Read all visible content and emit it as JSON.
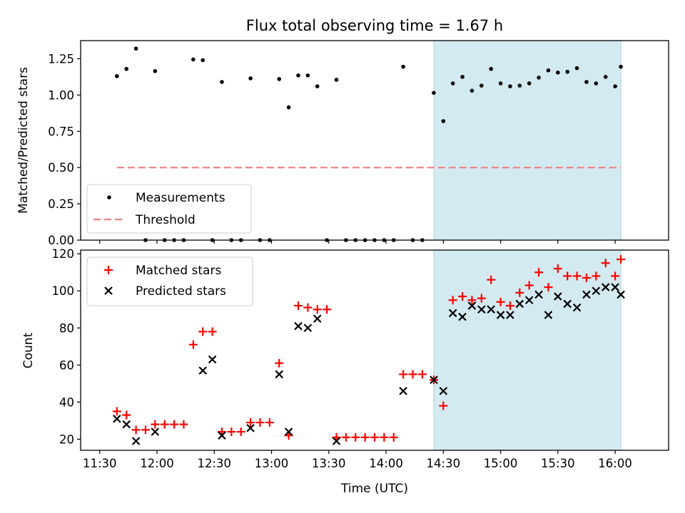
{
  "title": "Flux total observing time = 1.67 h",
  "colors": {
    "shade": "#d3eaf0",
    "shade_edge": "#a9d6e2",
    "threshold": "#f08080",
    "matched": "#ff0000",
    "predicted": "#000000",
    "measurement": "#000000"
  },
  "chart_data": [
    {
      "type": "scatter",
      "ylabel": "Matched/Predicted stars",
      "ylim": [
        0,
        1.375
      ],
      "yticks": [
        0.0,
        0.25,
        0.5,
        0.75,
        1.0,
        1.25
      ],
      "ytick_labels": [
        "0.00",
        "0.25",
        "0.50",
        "0.75",
        "1.00",
        "1.25"
      ],
      "xlim": [
        "11:20",
        "16:28"
      ],
      "shaded_span": [
        "14:25",
        "16:03"
      ],
      "legend_placement": "lower-left",
      "legend": [
        "Measurements",
        "Threshold"
      ],
      "threshold": {
        "name": "Threshold",
        "y": 0.5,
        "x_range": [
          "11:39",
          "16:03"
        ]
      },
      "series": [
        {
          "name": "Measurements",
          "marker": "dot",
          "x": [
            "11:39",
            "11:44",
            "11:49",
            "11:54",
            "11:59",
            "12:04",
            "12:09",
            "12:14",
            "12:19",
            "12:24",
            "12:29",
            "12:34",
            "12:39",
            "12:44",
            "12:49",
            "12:54",
            "12:59",
            "13:04",
            "13:09",
            "13:14",
            "13:19",
            "13:24",
            "13:29",
            "13:34",
            "13:39",
            "13:44",
            "13:49",
            "13:54",
            "13:59",
            "14:04",
            "14:09",
            "14:14",
            "14:19",
            "14:25",
            "14:30",
            "14:35",
            "14:40",
            "14:45",
            "14:50",
            "14:55",
            "15:00",
            "15:05",
            "15:10",
            "15:15",
            "15:20",
            "15:25",
            "15:30",
            "15:35",
            "15:40",
            "15:45",
            "15:50",
            "15:55",
            "16:00",
            "16:03"
          ],
          "y": [
            1.13,
            1.18,
            1.32,
            0,
            1.165,
            0,
            0,
            0,
            1.245,
            1.24,
            0,
            1.09,
            0,
            0,
            1.115,
            0,
            0,
            1.11,
            0.915,
            1.135,
            1.135,
            1.06,
            0,
            1.105,
            0,
            0,
            0,
            0,
            0,
            0,
            1.195,
            0,
            0,
            1.015,
            0.82,
            1.08,
            1.125,
            1.03,
            1.065,
            1.18,
            1.08,
            1.06,
            1.065,
            1.08,
            1.12,
            1.17,
            1.155,
            1.16,
            1.185,
            1.09,
            1.08,
            1.125,
            1.06,
            1.195
          ]
        }
      ]
    },
    {
      "type": "scatter",
      "xlabel": "Time (UTC)",
      "ylabel": "Count",
      "ylim": [
        14,
        122
      ],
      "yticks": [
        20,
        40,
        60,
        80,
        100,
        120
      ],
      "ytick_labels": [
        "20",
        "40",
        "60",
        "80",
        "100",
        "120"
      ],
      "xlim": [
        "11:20",
        "16:28"
      ],
      "xticks": [
        "11:30",
        "12:00",
        "12:30",
        "13:00",
        "13:30",
        "14:00",
        "14:30",
        "15:00",
        "15:30",
        "16:00"
      ],
      "shaded_span": [
        "14:25",
        "16:03"
      ],
      "legend_placement": "top-left",
      "legend": [
        "Matched stars",
        "Predicted stars"
      ],
      "series": [
        {
          "name": "Matched stars",
          "marker": "plus",
          "x": [
            "11:39",
            "11:44",
            "11:49",
            "11:54",
            "11:59",
            "12:04",
            "12:09",
            "12:14",
            "12:19",
            "12:24",
            "12:29",
            "12:34",
            "12:39",
            "12:44",
            "12:49",
            "12:54",
            "12:59",
            "13:04",
            "13:09",
            "13:14",
            "13:19",
            "13:24",
            "13:29",
            "13:34",
            "13:39",
            "13:44",
            "13:49",
            "13:54",
            "13:59",
            "14:04",
            "14:09",
            "14:14",
            "14:19",
            "14:25",
            "14:30",
            "14:35",
            "14:40",
            "14:45",
            "14:50",
            "14:55",
            "15:00",
            "15:05",
            "15:10",
            "15:15",
            "15:20",
            "15:25",
            "15:30",
            "15:35",
            "15:40",
            "15:45",
            "15:50",
            "15:55",
            "16:00",
            "16:03"
          ],
          "y": [
            35,
            33,
            25,
            25,
            28,
            28,
            28,
            28,
            71,
            78,
            78,
            24,
            24,
            24,
            29,
            29,
            29,
            61,
            22,
            92,
            91,
            90,
            90,
            21,
            21,
            21,
            21,
            21,
            21,
            21,
            55,
            55,
            55,
            52,
            38,
            95,
            97,
            95,
            96,
            106,
            94,
            92,
            99,
            103,
            110,
            102,
            112,
            108,
            108,
            107,
            108,
            115,
            108,
            117
          ]
        },
        {
          "name": "Predicted stars",
          "marker": "x",
          "x": [
            "11:39",
            "11:44",
            "11:49",
            "11:59",
            "12:24",
            "12:29",
            "12:34",
            "12:49",
            "13:04",
            "13:09",
            "13:14",
            "13:19",
            "13:24",
            "13:34",
            "14:09",
            "14:25",
            "14:30",
            "14:35",
            "14:40",
            "14:45",
            "14:50",
            "14:55",
            "15:00",
            "15:05",
            "15:10",
            "15:15",
            "15:20",
            "15:25",
            "15:30",
            "15:35",
            "15:40",
            "15:45",
            "15:50",
            "15:55",
            "16:00",
            "16:03"
          ],
          "y": [
            31,
            28,
            19,
            24,
            57,
            63,
            22,
            26,
            55,
            24,
            81,
            80,
            85,
            19,
            46,
            52,
            46,
            88,
            86,
            92,
            90,
            90,
            87,
            87,
            93,
            95,
            98,
            87,
            97,
            93,
            91,
            98,
            100,
            102,
            102,
            98
          ]
        }
      ]
    }
  ]
}
